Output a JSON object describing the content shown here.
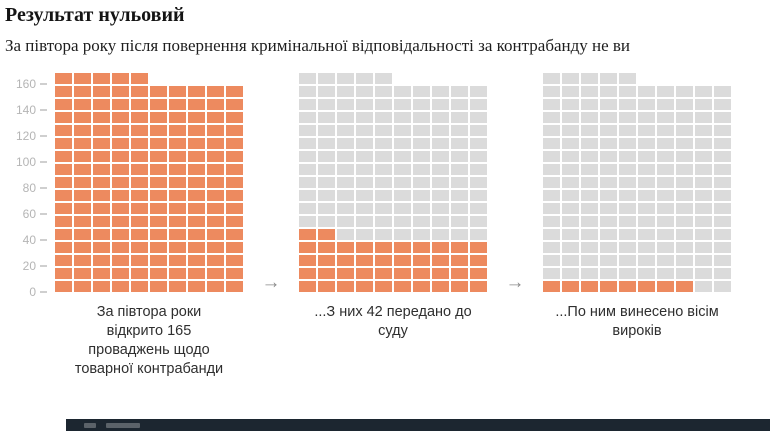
{
  "title": "Результат нульовий",
  "subtitle": "За півтора року після повернення кримінальної відповідальності за контрабанду не ви",
  "arrow": "→",
  "colors": {
    "filled": "#ed8a5f",
    "empty": "#dbdbdb",
    "footer_bg": "#1c2630"
  },
  "chart_data": {
    "type": "waffle",
    "columns": 10,
    "unit_per_cell": 1,
    "ylim": [
      0,
      170
    ],
    "yticks": [
      0,
      20,
      40,
      60,
      80,
      100,
      120,
      140,
      160
    ],
    "grid": true,
    "panels": [
      {
        "label": "За півтора роки відкрито 165 проваджень щодо товарної контрабанди",
        "total": 165,
        "filled": 165
      },
      {
        "label": "...З них 42 передано до суду",
        "total": 165,
        "filled": 42
      },
      {
        "label": "...По ним винесено вісім вироків",
        "total": 165,
        "filled": 8
      }
    ]
  }
}
